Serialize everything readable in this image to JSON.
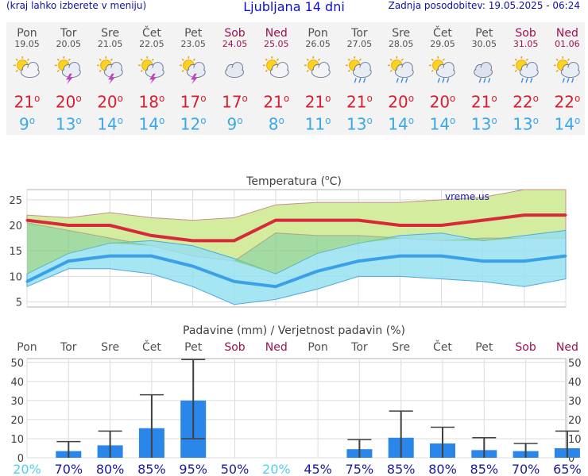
{
  "header": {
    "menu_hint": "(kraj lahko izberete v meniju)",
    "title": "Ljubljana 14 dni",
    "updated": "Zadnja posodobitev: 19.05.2025 - 06:24"
  },
  "days": [
    {
      "name": "Pon",
      "date": "19.05",
      "icon": "sun-cloud-icon",
      "tmax": "21",
      "tmin": "9",
      "weekend": false
    },
    {
      "name": "Tor",
      "date": "20.05",
      "icon": "sun-cloud-storm-icon",
      "tmax": "20",
      "tmin": "13",
      "weekend": false
    },
    {
      "name": "Sre",
      "date": "21.05",
      "icon": "sun-cloud-storm-icon",
      "tmax": "20",
      "tmin": "14",
      "weekend": false
    },
    {
      "name": "Čet",
      "date": "22.05",
      "icon": "sun-cloud-storm-icon",
      "tmax": "18",
      "tmin": "14",
      "weekend": false
    },
    {
      "name": "Pet",
      "date": "23.05",
      "icon": "sun-cloud-storm-icon",
      "tmax": "17",
      "tmin": "12",
      "weekend": false
    },
    {
      "name": "Sob",
      "date": "24.05",
      "icon": "cloud-icon",
      "tmax": "17",
      "tmin": "9",
      "weekend": true
    },
    {
      "name": "Ned",
      "date": "25.05",
      "icon": "sun-cloud-icon",
      "tmax": "21",
      "tmin": "8",
      "weekend": true
    },
    {
      "name": "Pon",
      "date": "26.05",
      "icon": "sun-cloud-icon",
      "tmax": "21",
      "tmin": "11",
      "weekend": false
    },
    {
      "name": "Tor",
      "date": "27.05",
      "icon": "sun-cloud-rain-icon",
      "tmax": "21",
      "tmin": "13",
      "weekend": false
    },
    {
      "name": "Sre",
      "date": "28.05",
      "icon": "sun-cloud-rain-icon",
      "tmax": "20",
      "tmin": "14",
      "weekend": false
    },
    {
      "name": "Čet",
      "date": "29.05",
      "icon": "sun-cloud-rain-icon",
      "tmax": "20",
      "tmin": "14",
      "weekend": false
    },
    {
      "name": "Pet",
      "date": "30.05",
      "icon": "cloud-rain-icon",
      "tmax": "21",
      "tmin": "13",
      "weekend": false
    },
    {
      "name": "Sob",
      "date": "31.05",
      "icon": "sun-cloud-rain-icon",
      "tmax": "22",
      "tmin": "13",
      "weekend": true
    },
    {
      "name": "Ned",
      "date": "01.06",
      "icon": "sun-cloud-rain-icon",
      "tmax": "22",
      "tmin": "14",
      "weekend": true
    }
  ],
  "colors": {
    "max": "#d62a3a",
    "min": "#3aa0e8",
    "maxband": "#d4ec9e",
    "minband": "#96e0f0",
    "overlap": "#7ccc7c",
    "rain": "#2a86e8",
    "weekday": "#505050",
    "weekend": "#a01050",
    "prob_high": "#1a1aa0",
    "prob_low": "#50d0f0"
  },
  "chart_data": [
    {
      "type": "line",
      "title": "Temperatura (°C)",
      "title_main": "Temperatura (",
      "title_unit": "C)",
      "title_deg": "o",
      "watermark": "vreme.us",
      "ylim": [
        4,
        27
      ],
      "yticks": [
        "5",
        "10",
        "15",
        "20",
        "25"
      ],
      "ytick_values": [
        5,
        10,
        15,
        20,
        25
      ],
      "grid": true,
      "series": [
        {
          "values": [
            21,
            20,
            20,
            18,
            17,
            17,
            21,
            21,
            21,
            20,
            20,
            21,
            22,
            22
          ]
        },
        {
          "values": [
            9,
            13,
            14,
            14,
            12,
            9,
            8,
            11,
            13,
            14,
            14,
            13,
            13,
            14
          ]
        }
      ],
      "max_band_upper": [
        22,
        21.5,
        22.5,
        21.5,
        21,
        21.5,
        24,
        24.5,
        24.5,
        24.5,
        25,
        25.5,
        27,
        27
      ],
      "max_band_lower": [
        20.5,
        19,
        17.5,
        16,
        14,
        13,
        18.5,
        18,
        18,
        17.5,
        17,
        17.5,
        17.5,
        17.5
      ],
      "min_band_upper": [
        10.5,
        14.5,
        16.5,
        17,
        16,
        13.5,
        10.5,
        14.5,
        16.5,
        18,
        18.5,
        17,
        18,
        19
      ],
      "min_band_lower": [
        8,
        11.5,
        11.5,
        10.5,
        8,
        4.5,
        5.5,
        7.5,
        10,
        10,
        9.5,
        9,
        8,
        9.5
      ]
    },
    {
      "type": "bar",
      "title": "Padavine (mm) / Verjetnost padavin (%)",
      "categories": [
        "Pon",
        "Tor",
        "Sre",
        "Čet",
        "Pet",
        "Sob",
        "Ned",
        "Pon",
        "Tor",
        "Sre",
        "Čet",
        "Pet",
        "Sob",
        "Ned"
      ],
      "ylim": [
        0,
        52
      ],
      "yticks": [
        "0",
        "10",
        "20",
        "30",
        "40",
        "50"
      ],
      "ytick_values": [
        0,
        10,
        20,
        30,
        40,
        50
      ],
      "values": [
        0,
        3.5,
        6.5,
        15.5,
        30,
        0,
        0,
        0,
        4.5,
        10.5,
        7.5,
        4,
        3.5,
        5
      ],
      "range_low": [
        null,
        0,
        0,
        0,
        10,
        null,
        null,
        null,
        0,
        0,
        0,
        0,
        0,
        0
      ],
      "range_high": [
        null,
        8.5,
        14,
        33,
        51.5,
        null,
        null,
        null,
        9.5,
        24.5,
        16,
        10.5,
        7.5,
        14
      ],
      "probability": [
        "20%",
        "70%",
        "80%",
        "85%",
        "95%",
        "50%",
        "20%",
        "45%",
        "75%",
        "85%",
        "80%",
        "85%",
        "70%",
        "65%"
      ],
      "probability_low": [
        true,
        false,
        false,
        false,
        false,
        false,
        true,
        false,
        false,
        false,
        false,
        false,
        false,
        false
      ]
    }
  ]
}
